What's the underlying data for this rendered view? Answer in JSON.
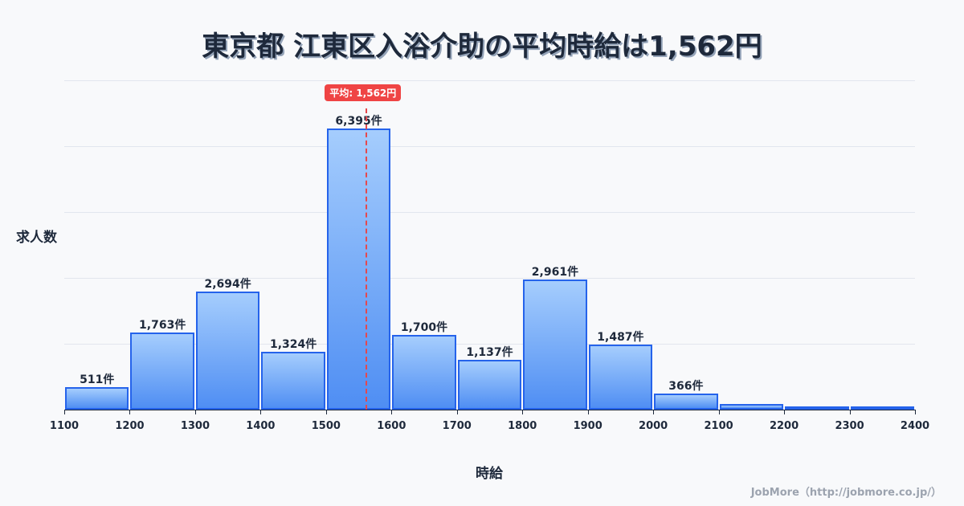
{
  "title": "東京都 江東区入浴介助の平均時給は1,562円",
  "y_axis_label": "求人数",
  "x_axis_label": "時給",
  "credit": "JobMore（http://jobmore.co.jp/）",
  "mean_badge": "平均: 1,562円",
  "colors": {
    "bar_border": "#2563eb",
    "bar_top": "#a5cdfd",
    "bar_bottom": "#4f8ef3",
    "mean": "#ef4444",
    "title": "#1e293b"
  },
  "chart_data": {
    "type": "bar",
    "title": "東京都 江東区入浴介助の平均時給は1,562円",
    "xlabel": "時給",
    "ylabel": "求人数",
    "categories": [
      "1100-1200",
      "1200-1300",
      "1300-1400",
      "1400-1500",
      "1500-1600",
      "1600-1700",
      "1700-1800",
      "1800-1900",
      "1900-2000",
      "2000-2100",
      "2100-2200",
      "2200-2300",
      "2300-2400"
    ],
    "values": [
      511,
      1763,
      2694,
      1324,
      6395,
      1700,
      1137,
      2961,
      1487,
      366,
      130,
      50,
      35
    ],
    "value_labels": [
      "511件",
      "1,763件",
      "2,694件",
      "1,324件",
      "6,395件",
      "1,700件",
      "1,137件",
      "2,961件",
      "1,487件",
      "366件",
      "",
      "",
      ""
    ],
    "x_ticks": [
      "1100",
      "1200",
      "1300",
      "1400",
      "1500",
      "1600",
      "1700",
      "1800",
      "1900",
      "2000",
      "2100",
      "2200",
      "2300",
      "2400"
    ],
    "xlim": [
      1100,
      2400
    ],
    "ylim": [
      0,
      7500
    ],
    "grid": true,
    "mean": 1562,
    "mean_label": "平均: 1,562円"
  }
}
